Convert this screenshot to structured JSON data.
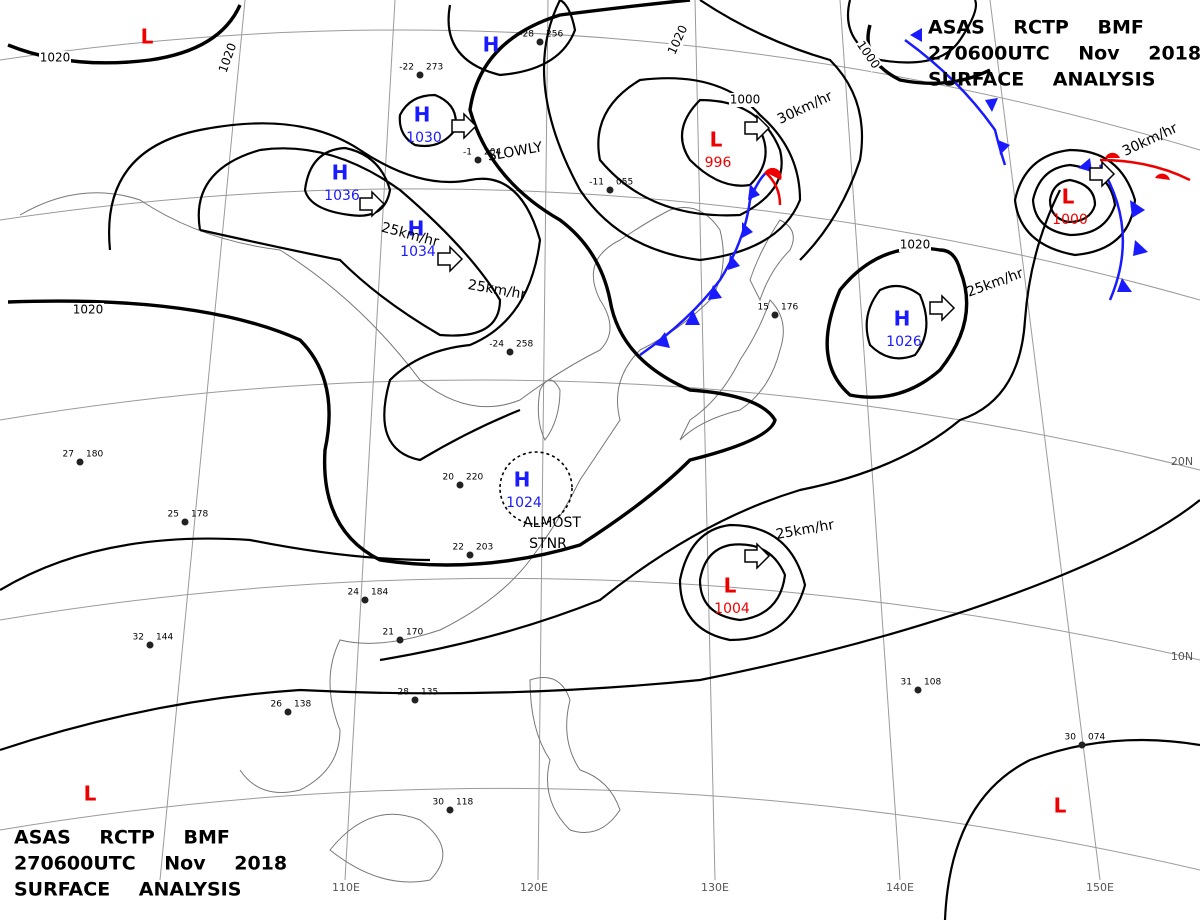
{
  "title_blocks": [
    {
      "lines": [
        "ASAS RCTP BMF",
        "270600UTC Nov 2018",
        "SURFACE ANALYSIS"
      ]
    },
    {
      "lines": [
        "ASAS RCTP BMF",
        "270600UTC Nov 2018",
        "SURFACE ANALYSIS"
      ]
    }
  ],
  "pressure_centers": [
    {
      "letter": "H"
    },
    {
      "letter": "H",
      "value": "1030"
    },
    {
      "letter": "H",
      "value": "1036"
    },
    {
      "letter": "H",
      "value": "1034"
    },
    {
      "letter": "H",
      "value": "1024"
    },
    {
      "letter": "H",
      "value": "1026"
    },
    {
      "letter": "L",
      "value": "996"
    },
    {
      "letter": "L",
      "value": "1000"
    },
    {
      "letter": "L",
      "value": "1004"
    },
    {
      "letter": "L"
    },
    {
      "letter": "L"
    },
    {
      "letter": "L"
    }
  ],
  "isobar_labels": [
    "1020",
    "1020",
    "1020",
    "1020",
    "1000",
    "1000",
    "1020"
  ],
  "motion_labels": [
    "SLOWLY",
    "25km/hr",
    "25km/hr",
    "30km/hr",
    "30km/hr",
    "25km/hr",
    "25km/hr",
    "ALMOST",
    "STNR"
  ],
  "graticule_labels": [
    "110E",
    "120E",
    "130E",
    "140E",
    "150E",
    "20N",
    "10N"
  ],
  "stations": [
    {
      "pressure": "256",
      "temp": "-28"
    },
    {
      "pressure": "273",
      "temp": "-22"
    },
    {
      "pressure": "204",
      "temp": "-1"
    },
    {
      "pressure": "055",
      "temp": "-11"
    },
    {
      "pressure": "176",
      "temp": "15"
    },
    {
      "pressure": "258",
      "temp": "-24"
    },
    {
      "pressure": "220",
      "temp": "20"
    },
    {
      "pressure": "203",
      "temp": "22"
    },
    {
      "pressure": "184",
      "temp": "24"
    },
    {
      "pressure": "170",
      "temp": "21"
    },
    {
      "pressure": "135",
      "temp": "28"
    },
    {
      "pressure": "138",
      "temp": "26"
    },
    {
      "pressure": "118",
      "temp": "30"
    },
    {
      "pressure": "108",
      "temp": "31"
    },
    {
      "pressure": "074",
      "temp": "30"
    },
    {
      "pressure": "180",
      "temp": "27"
    },
    {
      "pressure": "178",
      "temp": "25"
    },
    {
      "pressure": "144",
      "temp": "32"
    }
  ]
}
